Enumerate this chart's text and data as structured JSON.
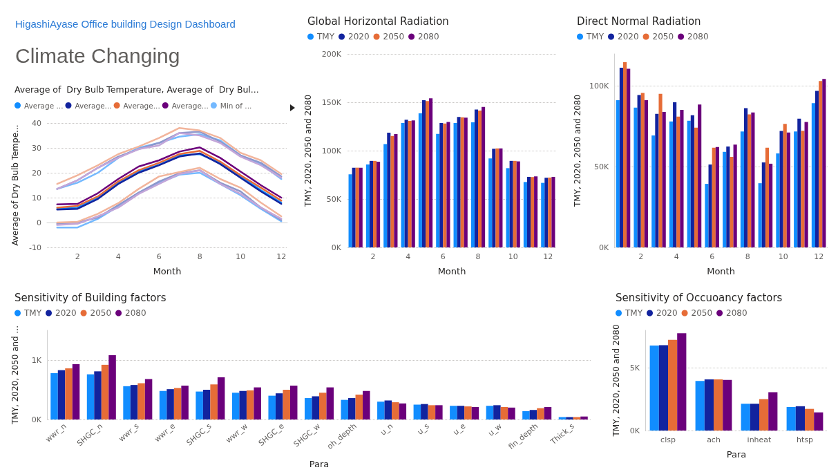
{
  "chart_data": [
    {
      "type": "other",
      "title": "HigashiAyase Office building Design Dashboard",
      "subtitle": "Climate Changing"
    },
    {
      "type": "line",
      "title": "Average of  Dry Bulb Temperature, Average of  Dry Bul...",
      "xlabel": "Month",
      "ylabel": "Average of Dry Bulb Tempe...",
      "x": [
        1,
        2,
        3,
        4,
        5,
        6,
        7,
        8,
        9,
        10,
        11,
        12
      ],
      "xlim": [
        0.5,
        12.3
      ],
      "xticks": [
        2,
        4,
        6,
        8,
        10,
        12
      ],
      "ylim": [
        -10,
        40
      ],
      "yticks": [
        -10,
        0,
        10,
        20,
        30,
        40
      ],
      "grid": "y",
      "legend": "top left",
      "marker": "none",
      "series": [
        {
          "name": "Average ...",
          "color": "#118dff",
          "values": [
            5.5,
            6,
            10,
            16,
            20.5,
            23.2,
            27,
            27.5,
            24,
            18.5,
            13,
            8
          ]
        },
        {
          "name": "Average...",
          "color": "#12239e",
          "values": [
            5.2,
            5.5,
            9.5,
            15.5,
            20,
            23,
            26.5,
            27.8,
            23.5,
            18,
            12.5,
            7.5
          ]
        },
        {
          "name": "Average...",
          "color": "#e66c37",
          "values": [
            6,
            6.7,
            10.5,
            16.5,
            21,
            24,
            27.5,
            28.8,
            24.5,
            19,
            14,
            8.8
          ]
        },
        {
          "name": "Average...",
          "color": "#6b007b",
          "values": [
            7.3,
            7.5,
            11.8,
            17.5,
            22.5,
            25,
            28.5,
            30.2,
            26,
            20.5,
            15,
            10
          ]
        },
        {
          "name": "Min of ...",
          "color": "#74b9ff",
          "values": [
            -2,
            -2,
            1.5,
            6.5,
            12,
            16,
            19.2,
            20,
            15.5,
            11,
            5.5,
            0.5
          ]
        },
        {
          "color": "#8e97cc",
          "values": [
            -0.5,
            0,
            2,
            7,
            12,
            16.5,
            19.8,
            21,
            16,
            12.5,
            6,
            1
          ]
        },
        {
          "color": "#f2b59c",
          "values": [
            0,
            0.3,
            3.5,
            7.8,
            13.5,
            18.5,
            20.3,
            22,
            17.5,
            14,
            8,
            2.5
          ]
        },
        {
          "color": "#c3a6d9",
          "values": [
            -1,
            -0.5,
            2.5,
            6,
            11.5,
            15.5,
            19.5,
            21,
            15.5,
            11.5,
            6,
            1.5
          ]
        },
        {
          "color": "#74b9ff",
          "values": [
            13.5,
            16,
            20,
            26,
            30,
            32,
            34.5,
            35.5,
            33,
            27,
            23.5,
            17.5
          ]
        },
        {
          "color": "#8e97cc",
          "values": [
            13.5,
            17,
            22,
            26.5,
            29.5,
            32,
            36,
            36.5,
            32.5,
            27,
            24,
            18.5
          ]
        },
        {
          "color": "#f2b59c",
          "values": [
            15.5,
            19,
            23,
            27.5,
            30.5,
            34,
            38,
            37,
            34,
            28,
            25,
            19.5
          ]
        },
        {
          "color": "#c3a6d9",
          "values": [
            13.5,
            17,
            22,
            26,
            29.5,
            31,
            36,
            35,
            32,
            26.5,
            23,
            18
          ]
        }
      ]
    },
    {
      "type": "bar",
      "title": "Global Horizontal Radiation",
      "xlabel": "Month",
      "ylabel": "TMY, 2020, 2050 and 2080",
      "categories": [
        null,
        "2",
        null,
        "4",
        null,
        "6",
        null,
        "8",
        null,
        "10",
        null,
        "12"
      ],
      "ylim": [
        0,
        200000
      ],
      "yticks": [
        {
          "value": 0,
          "label": "0K"
        },
        {
          "value": 50000,
          "label": "50K"
        },
        {
          "value": 100000,
          "label": "100K"
        },
        {
          "value": 150000,
          "label": "150K"
        },
        {
          "value": 200000,
          "label": "200K"
        }
      ],
      "grid": "y",
      "legend": "top left",
      "series": [
        {
          "name": "TMY",
          "color": "#118dff",
          "values": [
            75600,
            85700,
            106800,
            128500,
            138600,
            117400,
            128500,
            129200,
            92000,
            81900,
            67600,
            66700
          ]
        },
        {
          "name": "2020",
          "color": "#12239e",
          "values": [
            82400,
            89400,
            118600,
            131900,
            152200,
            128500,
            134800,
            142500,
            101900,
            89400,
            72900,
            72000
          ]
        },
        {
          "name": "2050",
          "color": "#e66c37",
          "values": [
            82400,
            89400,
            115200,
            130700,
            151200,
            128000,
            134500,
            141500,
            102400,
            89400,
            72700,
            72200
          ]
        },
        {
          "name": "2080",
          "color": "#6b007b",
          "values": [
            82400,
            88600,
            117100,
            131200,
            154100,
            129700,
            134100,
            145200,
            102400,
            88900,
            73400,
            72900
          ]
        }
      ]
    },
    {
      "type": "bar",
      "title": "Direct Normal Radiation",
      "xlabel": "Month",
      "ylabel": "TMY, 2020, 2050 and 2080",
      "categories": [
        null,
        "2",
        null,
        "4",
        null,
        "6",
        null,
        "8",
        null,
        "10",
        null,
        "12"
      ],
      "ylim": [
        0,
        120000
      ],
      "yticks": [
        {
          "value": 0,
          "label": "0K"
        },
        {
          "value": 50000,
          "label": "50K"
        },
        {
          "value": 100000,
          "label": "100K"
        }
      ],
      "grid": "y",
      "legend": "top left",
      "series": [
        {
          "name": "TMY",
          "color": "#118dff",
          "values": [
            91300,
            86700,
            69400,
            78100,
            78500,
            39400,
            59300,
            71900,
            39800,
            58300,
            71900,
            89500
          ]
        },
        {
          "name": "2020",
          "color": "#12239e",
          "values": [
            111400,
            94500,
            82800,
            90000,
            82000,
            51400,
            62600,
            86400,
            52700,
            72200,
            79800,
            97100
          ]
        },
        {
          "name": "2050",
          "color": "#e66c37",
          "values": [
            114900,
            95800,
            95200,
            81100,
            74200,
            61800,
            56100,
            82500,
            61800,
            76600,
            72300,
            103200
          ]
        },
        {
          "name": "2080",
          "color": "#6b007b",
          "values": [
            110800,
            91300,
            84000,
            85300,
            88600,
            62300,
            63800,
            83700,
            51900,
            71300,
            77800,
            104500
          ]
        }
      ]
    },
    {
      "type": "bar",
      "title": "Sensitivity of Building factors",
      "xlabel": "Para",
      "ylabel": "TMY, 2020, 2050 and ...",
      "categories": [
        "wwr_n",
        "SHGC_n",
        "wwr_s",
        "wwr_e",
        "SHGC_s",
        "wwr_w",
        "SHGC_e",
        "SHGC_w",
        "oh_depth",
        "u_n",
        "u_s",
        "u_e",
        "u_w",
        "fin_depth",
        "Thick_s"
      ],
      "ylim": [
        0,
        1500
      ],
      "yticks": [
        {
          "value": 0,
          "label": "0K"
        },
        {
          "value": 1000,
          "label": "1K"
        }
      ],
      "grid": "y",
      "legend": "top left",
      "series": [
        {
          "name": "TMY",
          "color": "#118dff",
          "values": [
            780,
            760,
            560,
            480,
            470,
            450,
            400,
            360,
            330,
            300,
            250,
            230,
            230,
            140,
            40
          ]
        },
        {
          "name": "2020",
          "color": "#12239e",
          "values": [
            830,
            810,
            580,
            510,
            500,
            480,
            440,
            390,
            360,
            320,
            260,
            230,
            240,
            160,
            40
          ]
        },
        {
          "name": "2050",
          "color": "#e66c37",
          "values": [
            860,
            920,
            610,
            530,
            590,
            490,
            500,
            450,
            420,
            290,
            240,
            220,
            210,
            190,
            40
          ]
        },
        {
          "name": "2080",
          "color": "#6b007b",
          "values": [
            930,
            1080,
            680,
            570,
            710,
            540,
            570,
            540,
            480,
            270,
            240,
            210,
            200,
            210,
            50
          ]
        }
      ]
    },
    {
      "type": "bar",
      "title": "Sensitivity of Occuoancy factors",
      "xlabel": "Para",
      "ylabel": "TMY, 2020, 2050 and 2080",
      "categories": [
        "clsp",
        "ach",
        "inheat",
        "htsp"
      ],
      "ylim": [
        0,
        8000
      ],
      "yticks": [
        {
          "value": 0,
          "label": "0K"
        },
        {
          "value": 5000,
          "label": "5K"
        }
      ],
      "grid": "y",
      "legend": "top left",
      "series": [
        {
          "name": "TMY",
          "color": "#118dff",
          "values": [
            6780,
            3960,
            2140,
            1880
          ]
        },
        {
          "name": "2020",
          "color": "#12239e",
          "values": [
            6820,
            4080,
            2140,
            1940
          ]
        },
        {
          "name": "2050",
          "color": "#e66c37",
          "values": [
            7240,
            4080,
            2510,
            1730
          ]
        },
        {
          "name": "2080",
          "color": "#6b007b",
          "values": [
            7760,
            4040,
            3060,
            1450
          ]
        }
      ]
    }
  ]
}
